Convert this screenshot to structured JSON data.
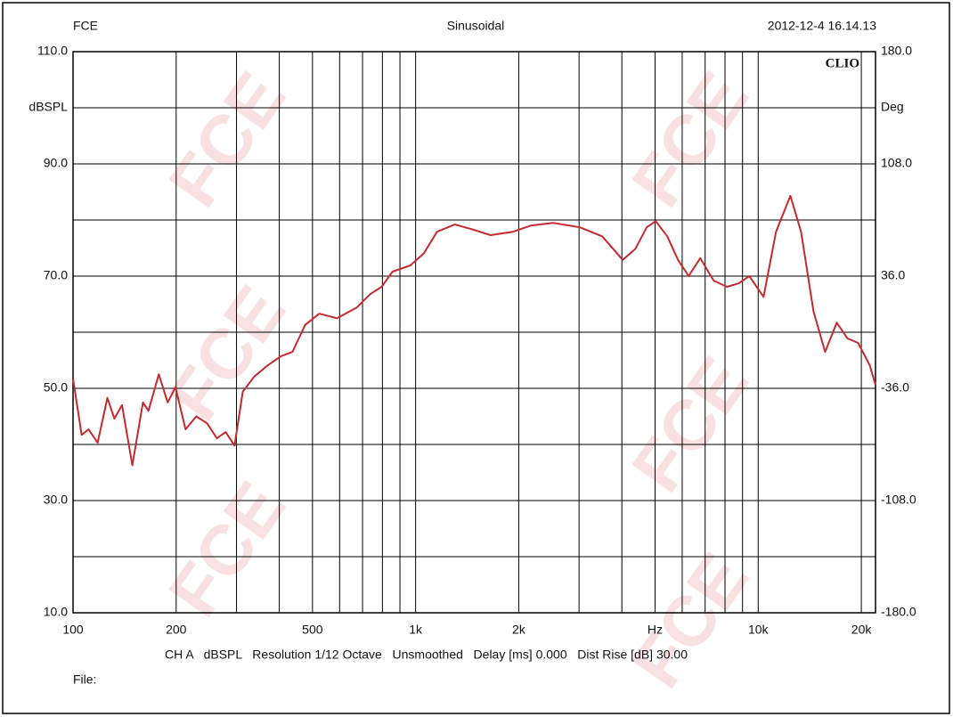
{
  "header": {
    "left": "FCE",
    "center": "Sinusoidal",
    "right": "2012-12-4 16.14.13"
  },
  "chart_data": {
    "type": "line",
    "brand": "CLIO",
    "ylabel": "dBSPL",
    "y2label": "Deg",
    "xscale": "log",
    "xlim": [
      100,
      22000
    ],
    "xticks": [
      100,
      200,
      500,
      {
        "value": 1000,
        "label": "1k"
      },
      {
        "value": 2000,
        "label": "2k"
      },
      {
        "value": 5000,
        "label": "Hz"
      },
      {
        "value": 10000,
        "label": "10k"
      },
      {
        "value": 20000,
        "label": "20k"
      }
    ],
    "xgrid": [
      100,
      200,
      300,
      400,
      500,
      600,
      700,
      800,
      900,
      1000,
      2000,
      3000,
      4000,
      5000,
      6000,
      7000,
      8000,
      9000,
      10000,
      20000
    ],
    "ylim": [
      10,
      110
    ],
    "yticks": [
      {
        "value": 10,
        "label": "10.0"
      },
      {
        "value": 30,
        "label": "30.0"
      },
      {
        "value": 50,
        "label": "50.0"
      },
      {
        "value": 70,
        "label": "70.0"
      },
      {
        "value": 90,
        "label": "90.0"
      },
      {
        "value": 110,
        "label": "110.0"
      }
    ],
    "ygrid": [
      10,
      20,
      30,
      40,
      50,
      60,
      70,
      80,
      90,
      100,
      110
    ],
    "y2lim": [
      -180,
      180
    ],
    "y2ticks": [
      {
        "value": -180,
        "label": "-180.0"
      },
      {
        "value": -108,
        "label": "-108.0"
      },
      {
        "value": -36,
        "label": "-36.0"
      },
      {
        "value": 36,
        "label": "36.0"
      },
      {
        "value": 108,
        "label": "108.0"
      },
      {
        "value": 180,
        "label": "180.0"
      }
    ],
    "grid": true,
    "series": [
      {
        "name": "CH A",
        "color": "#c62a2f",
        "x": [
          100,
          106,
          111,
          118,
          126,
          132,
          139,
          149,
          160,
          166,
          178,
          189,
          199,
          213,
          229,
          246,
          263,
          279,
          296,
          313,
          338,
          370,
          404,
          437,
          476,
          523,
          590,
          673,
          737,
          796,
          856,
          965,
          1055,
          1155,
          1302,
          1450,
          1655,
          1922,
          2168,
          2518,
          3015,
          3503,
          4020,
          4372,
          4727,
          5018,
          5426,
          5831,
          6266,
          6772,
          7411,
          8106,
          8763,
          9419,
          10366,
          11275,
          12411,
          13335,
          14505,
          15680,
          16953,
          18215,
          19572,
          21160,
          22000
        ],
        "values": [
          51.7,
          41.7,
          42.7,
          40.3,
          48.3,
          44.6,
          47,
          36.3,
          47.5,
          46,
          52.5,
          47.5,
          50.2,
          42.7,
          45,
          43.8,
          41.1,
          42.2,
          39.8,
          49.4,
          52.1,
          54.1,
          55.7,
          56.5,
          61.3,
          63.3,
          62.5,
          64.4,
          66.8,
          68.1,
          70.8,
          71.9,
          74,
          77.9,
          79.2,
          78.4,
          77.3,
          77.9,
          79,
          79.5,
          78.7,
          77.1,
          72.9,
          74.8,
          78.7,
          79.8,
          77.1,
          72.9,
          70,
          73.2,
          69.2,
          68.1,
          68.7,
          70,
          66.3,
          77.9,
          84.3,
          77.9,
          63.7,
          56.5,
          61.7,
          58.9,
          58.1,
          54.1,
          50.6
        ]
      }
    ]
  },
  "footer": {
    "settings": "CH A   dBSPL   Resolution 1/12 Octave   Unsmoothed   Delay [ms] 0.000   Dist Rise [dB] 30.00",
    "file": "File:"
  },
  "watermark": "FCE"
}
